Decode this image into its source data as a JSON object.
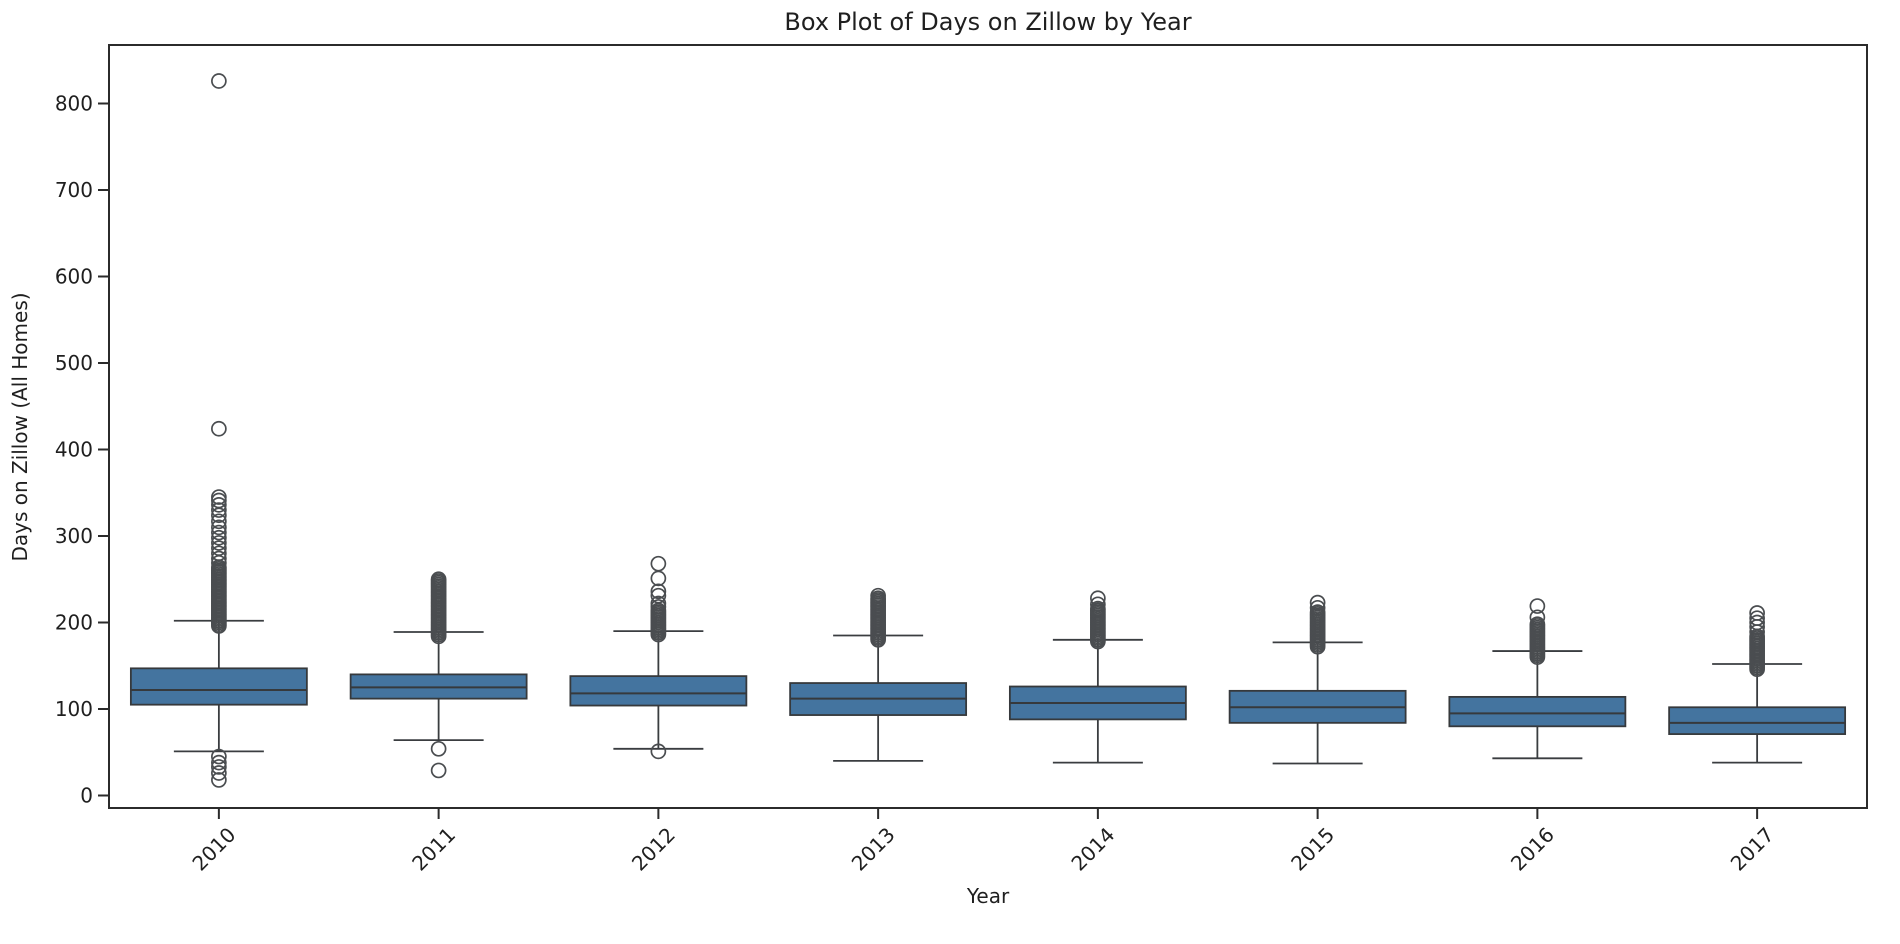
{
  "title": "Box Plot of Days on Zillow by Year",
  "xlabel": "Year",
  "ylabel": "Days on Zillow (All Homes)",
  "chart_data": {
    "type": "boxplot",
    "title": "Box Plot of Days on Zillow by Year",
    "xlabel": "Year",
    "ylabel": "Days on Zillow (All Homes)",
    "categories": [
      "2010",
      "2011",
      "2012",
      "2013",
      "2014",
      "2015",
      "2016",
      "2017"
    ],
    "yticks": [
      0,
      100,
      200,
      300,
      400,
      500,
      600,
      700,
      800
    ],
    "ylim": [
      -15,
      868
    ],
    "grid": false,
    "legend": "none",
    "series": [
      {
        "year": "2010",
        "whislo": 51,
        "q1": 105,
        "med": 122,
        "q3": 147,
        "whishi": 202,
        "fliers_low": [
          18,
          26,
          33,
          38,
          45
        ],
        "fliers_high": [
          196,
          198,
          200,
          202,
          204,
          206,
          208,
          210,
          212,
          214,
          216,
          218,
          220,
          222,
          224,
          226,
          228,
          230,
          232,
          234,
          236,
          238,
          240,
          242,
          244,
          246,
          248,
          250,
          252,
          254,
          256,
          258,
          260,
          262,
          264,
          269,
          274,
          280,
          286,
          292,
          298,
          304,
          310,
          317,
          324,
          330,
          336,
          341,
          345,
          424,
          826
        ]
      },
      {
        "year": "2011",
        "whislo": 64,
        "q1": 112,
        "med": 125,
        "q3": 140,
        "whishi": 189,
        "fliers_low": [
          29,
          54
        ],
        "fliers_high": [
          184,
          186,
          188,
          190,
          192,
          194,
          196,
          198,
          200,
          202,
          204,
          206,
          208,
          210,
          212,
          214,
          216,
          218,
          220,
          222,
          224,
          226,
          228,
          230,
          232,
          234,
          236,
          238,
          240,
          242,
          244,
          246,
          248,
          250
        ]
      },
      {
        "year": "2012",
        "whislo": 54,
        "q1": 104,
        "med": 118,
        "q3": 138,
        "whishi": 190,
        "fliers_low": [
          51
        ],
        "fliers_high": [
          186,
          188,
          190,
          192,
          194,
          196,
          198,
          200,
          202,
          204,
          206,
          208,
          210,
          212,
          214,
          218,
          222,
          231,
          236,
          251,
          268
        ]
      },
      {
        "year": "2013",
        "whislo": 40,
        "q1": 93,
        "med": 112,
        "q3": 130,
        "whishi": 185,
        "fliers_low": [],
        "fliers_high": [
          180,
          182,
          184,
          186,
          188,
          190,
          192,
          194,
          196,
          198,
          200,
          202,
          204,
          206,
          208,
          210,
          212,
          214,
          216,
          218,
          220,
          222,
          224,
          226,
          228,
          231
        ]
      },
      {
        "year": "2014",
        "whislo": 38,
        "q1": 88,
        "med": 107,
        "q3": 126,
        "whishi": 180,
        "fliers_low": [],
        "fliers_high": [
          178,
          180,
          182,
          184,
          186,
          188,
          190,
          192,
          194,
          196,
          198,
          200,
          202,
          204,
          206,
          208,
          210,
          212,
          214,
          216,
          221,
          228
        ]
      },
      {
        "year": "2015",
        "whislo": 37,
        "q1": 84,
        "med": 102,
        "q3": 121,
        "whishi": 177,
        "fliers_low": [],
        "fliers_high": [
          172,
          174,
          176,
          178,
          180,
          182,
          184,
          186,
          188,
          190,
          192,
          194,
          196,
          198,
          200,
          202,
          204,
          206,
          208,
          210,
          212,
          217,
          223
        ]
      },
      {
        "year": "2016",
        "whislo": 43,
        "q1": 80,
        "med": 95,
        "q3": 114,
        "whishi": 167,
        "fliers_low": [],
        "fliers_high": [
          160,
          162,
          164,
          166,
          168,
          170,
          172,
          174,
          176,
          178,
          180,
          182,
          184,
          186,
          188,
          190,
          192,
          194,
          196,
          198,
          206,
          219
        ]
      },
      {
        "year": "2017",
        "whislo": 38,
        "q1": 71,
        "med": 84,
        "q3": 102,
        "whishi": 152,
        "fliers_low": [],
        "fliers_high": [
          146,
          148,
          150,
          152,
          154,
          156,
          158,
          160,
          162,
          164,
          166,
          168,
          170,
          172,
          174,
          176,
          178,
          180,
          182,
          184,
          189,
          195,
          200,
          205,
          211
        ]
      }
    ]
  },
  "style": {
    "box_fill": "#44749F",
    "box_edge": "#36393C",
    "line_color": "#3A3D40",
    "flier_color": "#4A4D50",
    "spine_color": "#2B2B2B",
    "text_color": "#1F1F1F",
    "background": "#FFFFFF"
  }
}
